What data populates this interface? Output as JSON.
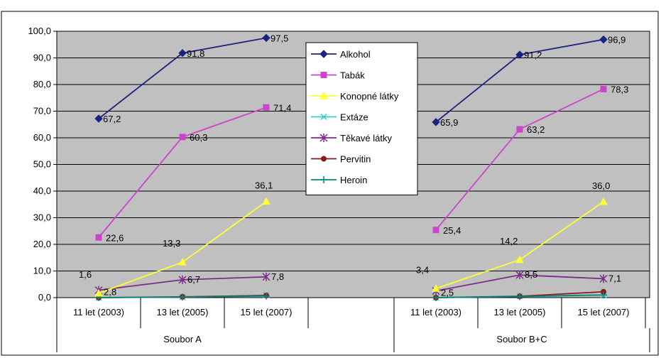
{
  "chart_data": {
    "type": "line",
    "ylim": [
      0,
      100
    ],
    "y_ticks": [
      "0,0",
      "10,0",
      "20,0",
      "30,0",
      "40,0",
      "50,0",
      "60,0",
      "70,0",
      "80,0",
      "90,0",
      "100,0"
    ],
    "grid": true,
    "legend_position": "center-top",
    "plot_background": "#c0c0c0",
    "groups": [
      {
        "name": "Soubor A",
        "categories": [
          "11 let (2003)",
          "13 let (2005)",
          "15 let (2007)"
        ]
      },
      {
        "name": "Soubor B+C",
        "categories": [
          "11 let (2003)",
          "13 let (2005)",
          "15 let (2007)"
        ]
      }
    ],
    "series": [
      {
        "name": "Alkohol",
        "color": "#1a237e",
        "marker": "diamond",
        "groupA": [
          67.2,
          91.8,
          97.5
        ],
        "groupB": [
          65.9,
          91.2,
          96.9
        ],
        "labelsA": [
          "67,2",
          "91,8",
          "97,5"
        ],
        "labelsB": [
          "65,9",
          "91,2",
          "96,9"
        ]
      },
      {
        "name": "Tabák",
        "color": "#cc44cc",
        "marker": "square",
        "groupA": [
          22.6,
          60.3,
          71.4
        ],
        "groupB": [
          25.4,
          63.2,
          78.3
        ],
        "labelsA": [
          "22,6",
          "60,3",
          "71,4"
        ],
        "labelsB": [
          "25,4",
          "63,2",
          "78,3"
        ]
      },
      {
        "name": "Konopné látky",
        "color": "#ffff33",
        "marker": "triangle",
        "groupA": [
          1.6,
          13.3,
          36.1
        ],
        "groupB": [
          3.4,
          14.2,
          36.0
        ],
        "labelsA": [
          "1,6",
          "13,3",
          "36,1"
        ],
        "labelsB": [
          "3,4",
          "14,2",
          "36,0"
        ]
      },
      {
        "name": "Extáze",
        "color": "#33cccc",
        "marker": "x",
        "groupA": [
          0.0,
          0.2,
          0.9
        ],
        "groupB": [
          0.0,
          0.6,
          1.0
        ],
        "labelsA": [],
        "labelsB": []
      },
      {
        "name": "Těkavé látky",
        "color": "#7b2a8a",
        "marker": "star",
        "groupA": [
          2.8,
          6.7,
          7.8
        ],
        "groupB": [
          2.5,
          8.5,
          7.1
        ],
        "labelsA": [
          "2,8",
          "6,7",
          "7,8"
        ],
        "labelsB": [
          "2,5",
          "8,5",
          "7,1"
        ]
      },
      {
        "name": "Pervitin",
        "color": "#8b1a1a",
        "marker": "circle",
        "groupA": [
          0.0,
          0.3,
          0.8
        ],
        "groupB": [
          0.0,
          0.5,
          2.2
        ],
        "labelsA": [],
        "labelsB": []
      },
      {
        "name": "Heroin",
        "color": "#00897b",
        "marker": "plus",
        "groupA": [
          0.0,
          0.2,
          0.6
        ],
        "groupB": [
          0.0,
          0.4,
          1.0
        ],
        "labelsA": [],
        "labelsB": []
      }
    ]
  }
}
